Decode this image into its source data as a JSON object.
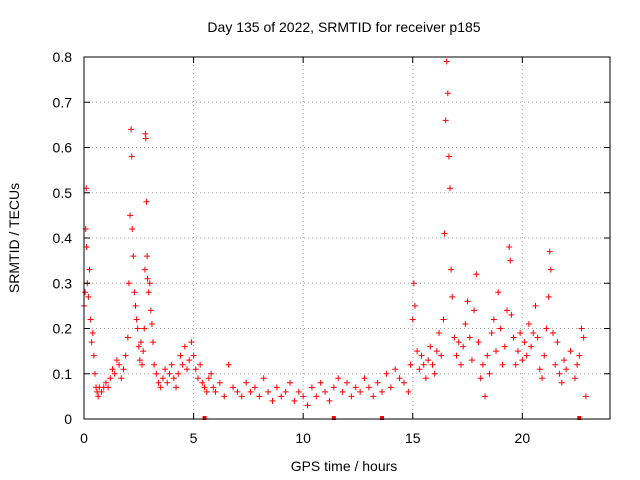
{
  "chart_data": {
    "type": "scatter",
    "title": "Day 135 of 2022, SRMTID for receiver p185",
    "xlabel": "GPS time / hours",
    "ylabel": "SRMTID / TECUs",
    "xlim": [
      0,
      24
    ],
    "ylim": [
      0,
      0.8
    ],
    "x_ticks": [
      0,
      5,
      10,
      15,
      20
    ],
    "x_tick_labels": [
      "0",
      "5",
      "10",
      "15",
      "20"
    ],
    "y_ticks": [
      0,
      0.1,
      0.2,
      0.3,
      0.4,
      0.5,
      0.6,
      0.7,
      0.8
    ],
    "y_tick_labels": [
      "0",
      "0.1",
      "0.2",
      "0.3",
      "0.4",
      "0.5",
      "0.6",
      "0.7",
      "0.8"
    ],
    "grid": true,
    "marker": "+",
    "color": "#ff0000",
    "zero_markers_x": [
      5.5,
      11.4,
      13.6,
      22.6
    ],
    "series": [
      {
        "name": "SRMTID",
        "points": [
          [
            0.0,
            0.25
          ],
          [
            0.05,
            0.28
          ],
          [
            0.08,
            0.42
          ],
          [
            0.1,
            0.51
          ],
          [
            0.12,
            0.38
          ],
          [
            0.15,
            0.3
          ],
          [
            0.2,
            0.27
          ],
          [
            0.25,
            0.33
          ],
          [
            0.3,
            0.22
          ],
          [
            0.35,
            0.17
          ],
          [
            0.4,
            0.19
          ],
          [
            0.45,
            0.14
          ],
          [
            0.5,
            0.1
          ],
          [
            0.55,
            0.07
          ],
          [
            0.6,
            0.06
          ],
          [
            0.65,
            0.05
          ],
          [
            0.7,
            0.07
          ],
          [
            0.8,
            0.06
          ],
          [
            0.9,
            0.07
          ],
          [
            1.0,
            0.08
          ],
          [
            1.1,
            0.07
          ],
          [
            1.2,
            0.09
          ],
          [
            1.3,
            0.11
          ],
          [
            1.4,
            0.1
          ],
          [
            1.5,
            0.13
          ],
          [
            1.6,
            0.12
          ],
          [
            1.7,
            0.09
          ],
          [
            1.8,
            0.11
          ],
          [
            1.9,
            0.14
          ],
          [
            2.0,
            0.18
          ],
          [
            2.05,
            0.3
          ],
          [
            2.1,
            0.45
          ],
          [
            2.15,
            0.64
          ],
          [
            2.18,
            0.58
          ],
          [
            2.2,
            0.42
          ],
          [
            2.25,
            0.36
          ],
          [
            2.3,
            0.28
          ],
          [
            2.35,
            0.25
          ],
          [
            2.4,
            0.22
          ],
          [
            2.45,
            0.2
          ],
          [
            2.5,
            0.16
          ],
          [
            2.55,
            0.13
          ],
          [
            2.6,
            0.17
          ],
          [
            2.65,
            0.12
          ],
          [
            2.7,
            0.15
          ],
          [
            2.75,
            0.2
          ],
          [
            2.78,
            0.33
          ],
          [
            2.8,
            0.63
          ],
          [
            2.82,
            0.62
          ],
          [
            2.85,
            0.48
          ],
          [
            2.88,
            0.36
          ],
          [
            2.9,
            0.31
          ],
          [
            2.95,
            0.28
          ],
          [
            3.0,
            0.3
          ],
          [
            3.05,
            0.24
          ],
          [
            3.1,
            0.21
          ],
          [
            3.15,
            0.17
          ],
          [
            3.2,
            0.12
          ],
          [
            3.3,
            0.1
          ],
          [
            3.4,
            0.08
          ],
          [
            3.5,
            0.07
          ],
          [
            3.6,
            0.09
          ],
          [
            3.7,
            0.11
          ],
          [
            3.8,
            0.08
          ],
          [
            3.9,
            0.1
          ],
          [
            4.0,
            0.12
          ],
          [
            4.1,
            0.09
          ],
          [
            4.2,
            0.07
          ],
          [
            4.3,
            0.1
          ],
          [
            4.4,
            0.14
          ],
          [
            4.5,
            0.12
          ],
          [
            4.6,
            0.16
          ],
          [
            4.7,
            0.11
          ],
          [
            4.8,
            0.13
          ],
          [
            4.9,
            0.17
          ],
          [
            5.0,
            0.14
          ],
          [
            5.1,
            0.11
          ],
          [
            5.2,
            0.09
          ],
          [
            5.3,
            0.12
          ],
          [
            5.4,
            0.08
          ],
          [
            5.5,
            0.07
          ],
          [
            5.6,
            0.06
          ],
          [
            5.7,
            0.09
          ],
          [
            5.8,
            0.1
          ],
          [
            5.9,
            0.07
          ],
          [
            6.0,
            0.06
          ],
          [
            6.2,
            0.08
          ],
          [
            6.4,
            0.05
          ],
          [
            6.6,
            0.12
          ],
          [
            6.8,
            0.07
          ],
          [
            7.0,
            0.06
          ],
          [
            7.2,
            0.05
          ],
          [
            7.4,
            0.08
          ],
          [
            7.6,
            0.06
          ],
          [
            7.8,
            0.07
          ],
          [
            8.0,
            0.05
          ],
          [
            8.2,
            0.09
          ],
          [
            8.4,
            0.06
          ],
          [
            8.6,
            0.04
          ],
          [
            8.8,
            0.07
          ],
          [
            9.0,
            0.05
          ],
          [
            9.2,
            0.06
          ],
          [
            9.4,
            0.08
          ],
          [
            9.6,
            0.04
          ],
          [
            9.8,
            0.06
          ],
          [
            10.0,
            0.05
          ],
          [
            10.2,
            0.03
          ],
          [
            10.4,
            0.07
          ],
          [
            10.6,
            0.05
          ],
          [
            10.8,
            0.08
          ],
          [
            11.0,
            0.06
          ],
          [
            11.2,
            0.04
          ],
          [
            11.4,
            0.07
          ],
          [
            11.6,
            0.09
          ],
          [
            11.8,
            0.06
          ],
          [
            12.0,
            0.08
          ],
          [
            12.2,
            0.05
          ],
          [
            12.4,
            0.07
          ],
          [
            12.6,
            0.06
          ],
          [
            12.8,
            0.09
          ],
          [
            13.0,
            0.07
          ],
          [
            13.2,
            0.05
          ],
          [
            13.4,
            0.08
          ],
          [
            13.6,
            0.06
          ],
          [
            13.8,
            0.1
          ],
          [
            14.0,
            0.07
          ],
          [
            14.2,
            0.11
          ],
          [
            14.4,
            0.09
          ],
          [
            14.6,
            0.08
          ],
          [
            14.8,
            0.06
          ],
          [
            14.9,
            0.12
          ],
          [
            15.0,
            0.22
          ],
          [
            15.05,
            0.3
          ],
          [
            15.1,
            0.25
          ],
          [
            15.2,
            0.15
          ],
          [
            15.3,
            0.11
          ],
          [
            15.4,
            0.14
          ],
          [
            15.5,
            0.12
          ],
          [
            15.6,
            0.09
          ],
          [
            15.7,
            0.13
          ],
          [
            15.8,
            0.16
          ],
          [
            15.9,
            0.12
          ],
          [
            16.0,
            0.1
          ],
          [
            16.1,
            0.15
          ],
          [
            16.2,
            0.19
          ],
          [
            16.3,
            0.14
          ],
          [
            16.4,
            0.22
          ],
          [
            16.45,
            0.41
          ],
          [
            16.5,
            0.66
          ],
          [
            16.55,
            0.79
          ],
          [
            16.6,
            0.72
          ],
          [
            16.65,
            0.58
          ],
          [
            16.7,
            0.51
          ],
          [
            16.75,
            0.33
          ],
          [
            16.8,
            0.27
          ],
          [
            16.9,
            0.18
          ],
          [
            17.0,
            0.14
          ],
          [
            17.1,
            0.17
          ],
          [
            17.2,
            0.12
          ],
          [
            17.3,
            0.16
          ],
          [
            17.4,
            0.21
          ],
          [
            17.5,
            0.26
          ],
          [
            17.6,
            0.18
          ],
          [
            17.7,
            0.13
          ],
          [
            17.8,
            0.24
          ],
          [
            17.9,
            0.32
          ],
          [
            18.0,
            0.17
          ],
          [
            18.1,
            0.09
          ],
          [
            18.2,
            0.12
          ],
          [
            18.3,
            0.05
          ],
          [
            18.4,
            0.14
          ],
          [
            18.5,
            0.1
          ],
          [
            18.6,
            0.19
          ],
          [
            18.7,
            0.22
          ],
          [
            18.8,
            0.15
          ],
          [
            18.9,
            0.28
          ],
          [
            19.0,
            0.2
          ],
          [
            19.1,
            0.12
          ],
          [
            19.2,
            0.16
          ],
          [
            19.3,
            0.24
          ],
          [
            19.4,
            0.38
          ],
          [
            19.45,
            0.35
          ],
          [
            19.5,
            0.23
          ],
          [
            19.6,
            0.18
          ],
          [
            19.7,
            0.12
          ],
          [
            19.8,
            0.15
          ],
          [
            19.9,
            0.19
          ],
          [
            20.0,
            0.13
          ],
          [
            20.1,
            0.17
          ],
          [
            20.2,
            0.14
          ],
          [
            20.3,
            0.21
          ],
          [
            20.4,
            0.16
          ],
          [
            20.5,
            0.19
          ],
          [
            20.6,
            0.25
          ],
          [
            20.7,
            0.18
          ],
          [
            20.8,
            0.11
          ],
          [
            20.9,
            0.09
          ],
          [
            21.0,
            0.14
          ],
          [
            21.1,
            0.2
          ],
          [
            21.2,
            0.27
          ],
          [
            21.25,
            0.37
          ],
          [
            21.3,
            0.33
          ],
          [
            21.4,
            0.19
          ],
          [
            21.5,
            0.12
          ],
          [
            21.6,
            0.17
          ],
          [
            21.7,
            0.1
          ],
          [
            21.8,
            0.08
          ],
          [
            21.9,
            0.13
          ],
          [
            22.0,
            0.11
          ],
          [
            22.2,
            0.15
          ],
          [
            22.4,
            0.09
          ],
          [
            22.5,
            0.12
          ],
          [
            22.6,
            0.14
          ],
          [
            22.7,
            0.2
          ],
          [
            22.8,
            0.18
          ],
          [
            22.9,
            0.05
          ]
        ]
      }
    ]
  }
}
